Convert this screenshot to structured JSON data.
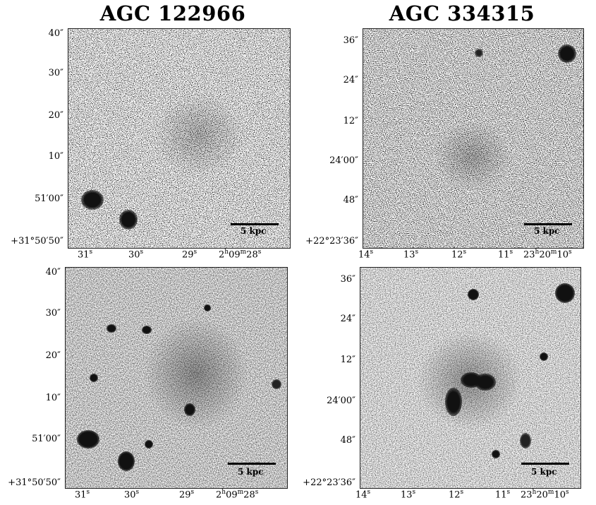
{
  "titles": {
    "left": "AGC 122966",
    "right": "AGC 334315"
  },
  "left_y_ticks": [
    "40″",
    "30″",
    "20″",
    "10″",
    "51′00″",
    "+31°50′50″"
  ],
  "right_y_ticks": [
    "36″",
    "24″",
    "12″",
    "24′00″",
    "48″",
    "+22°23′36″"
  ],
  "left_x_ticks": [
    "31",
    "30",
    "29",
    "2",
    "09",
    "28"
  ],
  "left_x_units": [
    "s",
    "s",
    "s",
    "h",
    "m",
    "s"
  ],
  "right_x_ticks": [
    "14",
    "13",
    "12",
    "11",
    "23",
    "20",
    "10"
  ],
  "right_x_units": [
    "s",
    "s",
    "s",
    "s",
    "h",
    "m",
    "s"
  ],
  "scale_label": "5 kpc"
}
